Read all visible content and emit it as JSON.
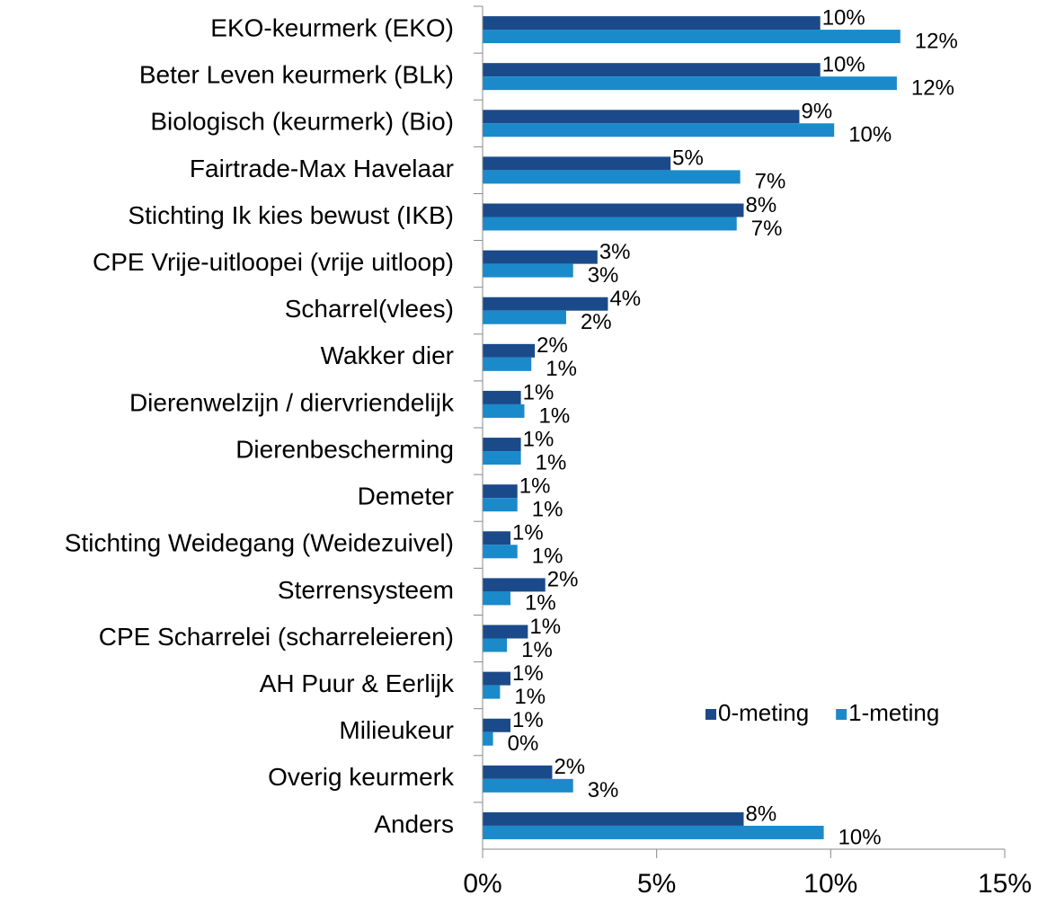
{
  "chart_data": {
    "type": "barh",
    "categories": [
      "EKO-keurmerk (EKO)",
      "Beter Leven keurmerk (BLk)",
      "Biologisch (keurmerk) (Bio)",
      "Fairtrade-Max Havelaar",
      "Stichting Ik kies bewust (IKB)",
      "CPE Vrije-uitloopei (vrije uitloop)",
      "Scharrel(vlees)",
      "Wakker dier",
      "Dierenwelzijn / diervriendelijk",
      "Dierenbescherming",
      "Demeter",
      "Stichting Weidegang (Weidezuivel)",
      "Sterrensysteem",
      "CPE Scharrelei (scharreleieren)",
      "AH Puur & Eerlijk",
      "Milieukeur",
      "Overig keurmerk",
      "Anders"
    ],
    "series": [
      {
        "name": "0-meting",
        "color": "#1b4a8a",
        "values": [
          9.7,
          9.7,
          9.1,
          5.4,
          7.5,
          3.3,
          3.6,
          1.5,
          1.1,
          1.1,
          1.0,
          0.8,
          1.8,
          1.3,
          0.8,
          0.8,
          2.0,
          7.5
        ],
        "value_labels": [
          "10%",
          "10%",
          "9%",
          "5%",
          "8%",
          "3%",
          "4%",
          "2%",
          "1%",
          "1%",
          "1%",
          "1%",
          "2%",
          "1%",
          "1%",
          "1%",
          "2%",
          "8%"
        ]
      },
      {
        "name": "1-meting",
        "color": "#1a8acb",
        "values": [
          12.0,
          11.9,
          10.1,
          7.4,
          7.3,
          2.6,
          2.4,
          1.4,
          1.2,
          1.1,
          1.0,
          1.0,
          0.8,
          0.7,
          0.5,
          0.3,
          2.6,
          9.8
        ],
        "value_labels": [
          "12%",
          "12%",
          "10%",
          "7%",
          "7%",
          "3%",
          "2%",
          "1%",
          "1%",
          "1%",
          "1%",
          "1%",
          "1%",
          "1%",
          "1%",
          "0%",
          "3%",
          "10%"
        ]
      }
    ],
    "xlim": [
      0,
      15
    ],
    "xticks": [
      {
        "value": 0,
        "label": "0%"
      },
      {
        "value": 5,
        "label": "5%"
      },
      {
        "value": 10,
        "label": "10%"
      },
      {
        "value": 15,
        "label": "15%"
      }
    ],
    "legend": "lower right"
  }
}
